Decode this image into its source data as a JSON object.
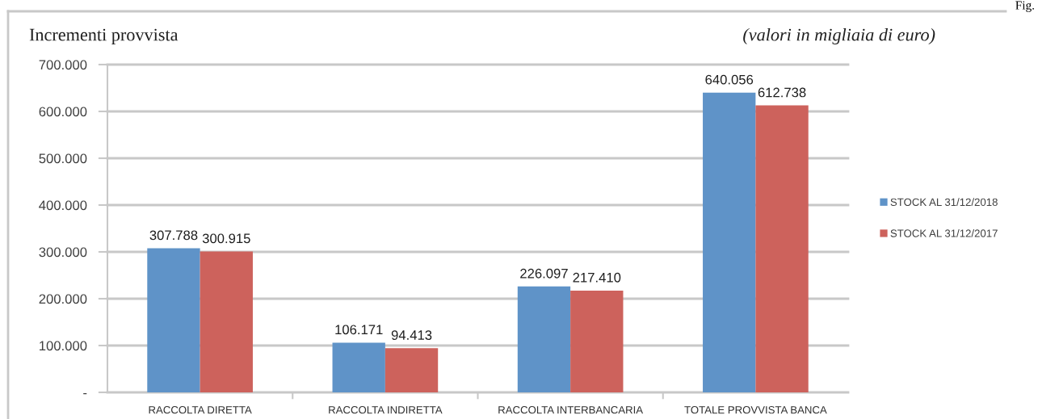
{
  "chart_data": {
    "type": "bar",
    "title": "Incrementi provvista",
    "subtitle": "(valori in migliaia di euro)",
    "annotations": [
      "Fig."
    ],
    "categories": [
      "RACCOLTA DIRETTA",
      "RACCOLTA INDIRETTA",
      "RACCOLTA INTERBANCARIA",
      "TOTALE PROVVISTA BANCA"
    ],
    "series": [
      {
        "name": "STOCK AL 31/12/2018",
        "color": "#5f93c8",
        "values": [
          307788,
          106171,
          226097,
          640056
        ],
        "value_labels": [
          "307.788",
          "106.171",
          "226.097",
          "640.056"
        ]
      },
      {
        "name": "STOCK AL 31/12/2017",
        "color": "#cd625c",
        "values": [
          300915,
          94413,
          217410,
          612738
        ],
        "value_labels": [
          "300.915",
          "94.413",
          "217.410",
          "612.738"
        ]
      }
    ],
    "ylim": [
      0,
      700000
    ],
    "yticks": [
      {
        "value": 0,
        "label": "-"
      },
      {
        "value": 100000,
        "label": "100.000"
      },
      {
        "value": 200000,
        "label": "200.000"
      },
      {
        "value": 300000,
        "label": "300.000"
      },
      {
        "value": 400000,
        "label": "400.000"
      },
      {
        "value": 500000,
        "label": "500.000"
      },
      {
        "value": 600000,
        "label": "600.000"
      },
      {
        "value": 700000,
        "label": "700.000"
      }
    ],
    "grid": "y",
    "legend": "right"
  }
}
